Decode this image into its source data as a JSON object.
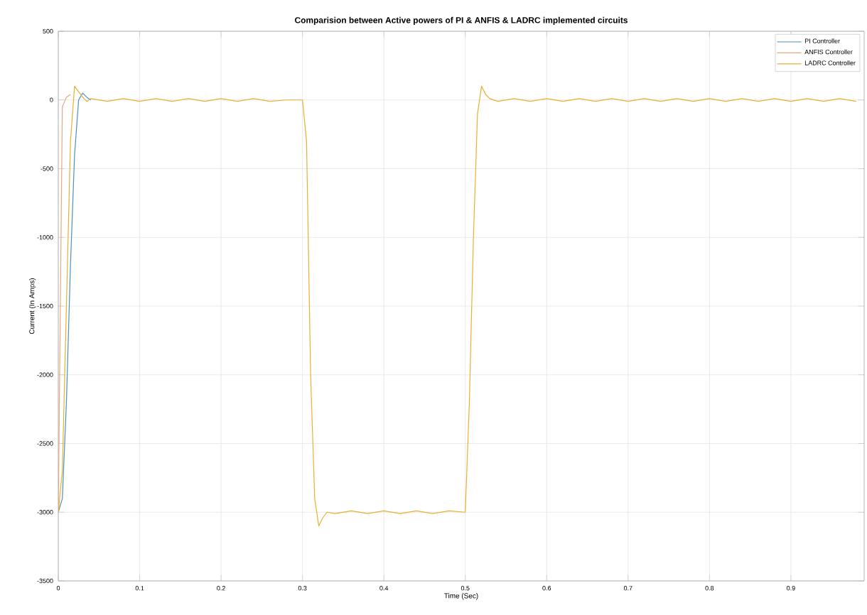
{
  "chart_data": {
    "type": "line",
    "title": "Comparision between Active powers of PI  & ANFIS & LADRC implemented circuits",
    "xlabel": "Time (Sec)",
    "ylabel": "Current (In Amps)",
    "x": [
      0,
      0.005,
      0.01,
      0.015,
      0.02,
      0.025,
      0.03,
      0.035,
      0.04,
      0.06,
      0.08,
      0.1,
      0.12,
      0.14,
      0.16,
      0.18,
      0.2,
      0.22,
      0.24,
      0.26,
      0.28,
      0.3,
      0.305,
      0.31,
      0.315,
      0.32,
      0.325,
      0.33,
      0.34,
      0.36,
      0.38,
      0.4,
      0.42,
      0.44,
      0.46,
      0.48,
      0.5,
      0.505,
      0.51,
      0.515,
      0.52,
      0.525,
      0.53,
      0.54,
      0.56,
      0.58,
      0.6,
      0.62,
      0.64,
      0.66,
      0.68,
      0.7,
      0.72,
      0.74,
      0.76,
      0.78,
      0.8,
      0.82,
      0.84,
      0.86,
      0.88,
      0.9,
      0.92,
      0.94,
      0.96,
      0.98
    ],
    "series": [
      {
        "name": "PI Controller",
        "color": "#4a90c0",
        "values": [
          -3000,
          -2900,
          -2200,
          -1200,
          -400,
          0,
          50,
          20,
          0,
          null,
          null,
          null,
          null,
          null,
          null,
          null,
          null,
          null,
          null,
          null,
          null,
          null,
          null,
          null,
          null,
          null,
          null,
          null,
          null,
          null,
          null,
          null,
          null,
          null,
          null,
          null,
          null,
          null,
          null,
          null,
          null,
          null,
          null,
          null,
          null,
          null,
          null,
          null,
          null,
          null,
          null,
          null,
          null,
          null,
          null,
          null,
          null,
          null,
          null,
          null,
          null,
          null,
          null,
          null,
          null,
          null
        ]
      },
      {
        "name": "ANFIS Controller",
        "color": "#e8a67a",
        "values": [
          -3000,
          -50,
          20,
          40,
          null,
          null,
          null,
          null,
          null,
          null,
          null,
          null,
          null,
          null,
          null,
          null,
          null,
          null,
          null,
          null,
          null,
          null,
          null,
          null,
          null,
          null,
          null,
          null,
          null,
          null,
          null,
          null,
          null,
          null,
          null,
          null,
          null,
          null,
          null,
          null,
          null,
          null,
          null,
          null,
          null,
          null,
          null,
          null,
          null,
          null,
          null,
          null,
          null,
          null,
          null,
          null,
          null,
          null,
          null,
          null,
          null,
          null,
          null,
          null,
          null,
          null
        ]
      },
      {
        "name": "LADRC Controller",
        "color": "#e8b030",
        "values": [
          -3000,
          -2700,
          -1500,
          -300,
          100,
          60,
          20,
          -10,
          10,
          -10,
          10,
          -10,
          10,
          -10,
          10,
          -10,
          10,
          -10,
          10,
          -10,
          0,
          0,
          -300,
          -2000,
          -2900,
          -3100,
          -3040,
          -3000,
          -3010,
          -2990,
          -3010,
          -2990,
          -3010,
          -2990,
          -3010,
          -2990,
          -3000,
          -2200,
          -1000,
          -100,
          100,
          40,
          10,
          -10,
          10,
          -10,
          10,
          -10,
          10,
          -10,
          10,
          -10,
          10,
          -10,
          10,
          -10,
          10,
          -10,
          10,
          -10,
          10,
          -10,
          10,
          -10,
          10,
          -10
        ]
      }
    ],
    "xlim": [
      0,
      0.99
    ],
    "ylim": [
      -3500,
      500
    ],
    "xticks": [
      0,
      0.1,
      0.2,
      0.3,
      0.4,
      0.5,
      0.6,
      0.7,
      0.8,
      0.9
    ],
    "yticks": [
      -3500,
      -3000,
      -2500,
      -2000,
      -1500,
      -1000,
      -500,
      0,
      500
    ],
    "grid": true,
    "legend": "top right"
  }
}
